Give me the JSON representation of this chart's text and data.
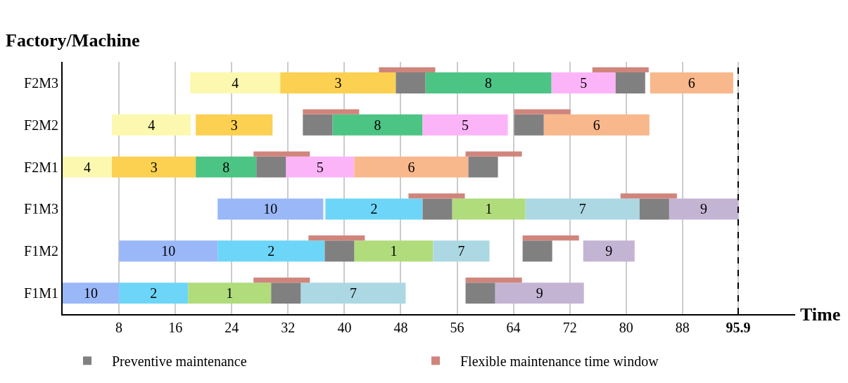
{
  "chart_data": {
    "type": "bar",
    "orientation": "horizontal",
    "xlabel": "Time",
    "ylabel": "Factory/Machine",
    "categories": [
      "F2M3",
      "F2M2",
      "F2M1",
      "F1M3",
      "F1M2",
      "F1M1"
    ],
    "xlim": [
      0,
      104
    ],
    "xticks": [
      8,
      16,
      24,
      32,
      40,
      48,
      56,
      64,
      72,
      80,
      88,
      {
        "value": 95.9,
        "label": "95.9"
      }
    ],
    "grid": "x",
    "legend": "bottom",
    "ref_lines": [
      {
        "axis": "x",
        "value": 95.9,
        "color": "#000000",
        "line_style": "dashed"
      }
    ],
    "series": [
      {
        "name": "10",
        "color": "#9ab8f8",
        "base": [
          null,
          null,
          null,
          22,
          8,
          0
        ],
        "values": [
          null,
          null,
          null,
          15,
          14,
          8
        ]
      },
      {
        "name": "2",
        "color": "#6dd6f8",
        "base": [
          null,
          null,
          null,
          37.3,
          22,
          8
        ],
        "values": [
          null,
          null,
          null,
          13.8,
          15.2,
          9.8
        ]
      },
      {
        "name": "1",
        "color": "#b0dc7c",
        "base": [
          null,
          null,
          null,
          55.3,
          41.4,
          17.8
        ],
        "values": [
          null,
          null,
          null,
          10.4,
          11.2,
          11.8
        ]
      },
      {
        "name": "7",
        "color": "#acd8e4",
        "base": [
          null,
          null,
          null,
          65.7,
          52.6,
          33.8
        ],
        "values": [
          null,
          null,
          null,
          16.2,
          8,
          14.9
        ]
      },
      {
        "name": "9",
        "color": "#c4b4d4",
        "base": [
          null,
          null,
          null,
          86.1,
          73.9,
          61.4
        ],
        "values": [
          null,
          null,
          null,
          9.8,
          7.3,
          12.6
        ]
      },
      {
        "name": "4",
        "color": "#fcf8b0",
        "base": [
          18.1,
          7,
          0,
          null,
          null,
          null
        ],
        "values": [
          12.8,
          11.2,
          7,
          null,
          null,
          null
        ]
      },
      {
        "name": "3",
        "color": "#fcd050",
        "base": [
          30.9,
          18.9,
          7,
          null,
          null,
          null
        ],
        "values": [
          16.4,
          10.9,
          11.9,
          null,
          null,
          null
        ]
      },
      {
        "name": "8",
        "color": "#4cc484",
        "base": [
          51.5,
          38.3,
          18.9,
          null,
          null,
          null
        ],
        "values": [
          17.9,
          12.8,
          8.6,
          null,
          null,
          null
        ]
      },
      {
        "name": "5",
        "color": "#fcb4f8",
        "base": [
          69.4,
          51.1,
          31.7,
          null,
          null,
          null
        ],
        "values": [
          9.1,
          12.1,
          9.7,
          null,
          null,
          null
        ]
      },
      {
        "name": "6",
        "color": "#f8b88c",
        "base": [
          83.4,
          68.3,
          41.4,
          null,
          null,
          null
        ],
        "values": [
          11.8,
          15,
          16.2,
          null,
          null,
          null
        ]
      },
      {
        "name": "Preventive maintenance",
        "color": "#808080",
        "base": [
          47.3,
          34.1,
          27.5,
          51.1,
          37.2,
          29.6
        ],
        "values": [
          4.2,
          4.2,
          4.2,
          4.2,
          4.2,
          4.2
        ]
      },
      {
        "color": "#808080",
        "base": [
          78.5,
          64.1,
          57.6,
          81.9,
          65.3,
          57.2
        ],
        "values": [
          4.2,
          4.2,
          4.2,
          4.2,
          4.2,
          4.2
        ]
      },
      {
        "name": "Flexible maintenance time window",
        "line_style": "solid",
        "color": "#d0857c",
        "base": [
          44.9,
          34.1,
          27.1,
          49.1,
          34.9,
          27.1
        ],
        "values": [
          8,
          8,
          8,
          8,
          8,
          8
        ]
      },
      {
        "line_style": "solid",
        "color": "#d0857c",
        "base": [
          75.2,
          64.1,
          57.2,
          79.2,
          65.3,
          57.2
        ],
        "values": [
          8,
          8,
          8,
          8,
          8,
          8
        ]
      }
    ]
  }
}
